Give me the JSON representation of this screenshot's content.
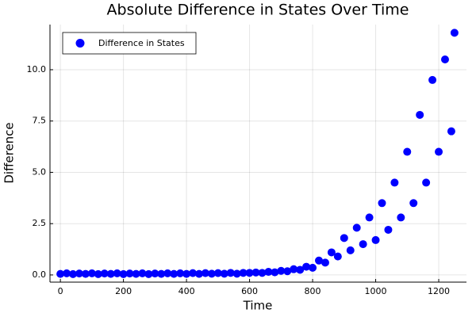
{
  "chart_data": {
    "type": "scatter",
    "title": "Absolute Difference in States Over Time",
    "x_label": "Time",
    "y_label": "Difference",
    "xlim": [
      -33,
      1288
    ],
    "ylim": [
      -0.35,
      12.2
    ],
    "xticks": [
      0,
      200,
      400,
      600,
      800,
      1000,
      1200
    ],
    "yticks": [
      {
        "value": 0,
        "label": "0.0"
      },
      {
        "value": 2.5,
        "label": "2.5"
      },
      {
        "value": 5,
        "label": "5.0"
      },
      {
        "value": 7.5,
        "label": "7.5"
      },
      {
        "value": 10,
        "label": "10.0"
      }
    ],
    "grid": true,
    "legend": "top-left",
    "x": [
      0,
      20,
      40,
      60,
      80,
      100,
      120,
      140,
      160,
      180,
      200,
      220,
      240,
      260,
      280,
      300,
      320,
      340,
      360,
      380,
      400,
      420,
      440,
      460,
      480,
      500,
      520,
      540,
      560,
      580,
      600,
      620,
      640,
      660,
      680,
      700,
      720,
      740,
      760,
      780,
      800,
      820,
      840,
      860,
      880,
      900,
      920,
      940,
      960,
      980,
      1000,
      1020,
      1040,
      1060,
      1080,
      1100,
      1120,
      1140,
      1160,
      1180,
      1200,
      1220,
      1240,
      1250
    ],
    "series": [
      {
        "name": "Difference in States",
        "color": "#0000ff",
        "values": [
          0.05,
          0.08,
          0.04,
          0.07,
          0.05,
          0.08,
          0.04,
          0.07,
          0.05,
          0.08,
          0.04,
          0.07,
          0.05,
          0.08,
          0.04,
          0.07,
          0.05,
          0.08,
          0.05,
          0.08,
          0.05,
          0.09,
          0.05,
          0.09,
          0.06,
          0.09,
          0.06,
          0.1,
          0.06,
          0.1,
          0.1,
          0.12,
          0.1,
          0.15,
          0.13,
          0.2,
          0.18,
          0.28,
          0.25,
          0.4,
          0.35,
          0.7,
          0.6,
          1.1,
          0.9,
          1.8,
          1.2,
          2.3,
          1.5,
          2.8,
          1.7,
          3.5,
          2.2,
          4.5,
          2.8,
          6.0,
          3.5,
          7.8,
          4.5,
          9.5,
          6.0,
          10.5,
          7.0,
          11.8
        ]
      }
    ]
  }
}
